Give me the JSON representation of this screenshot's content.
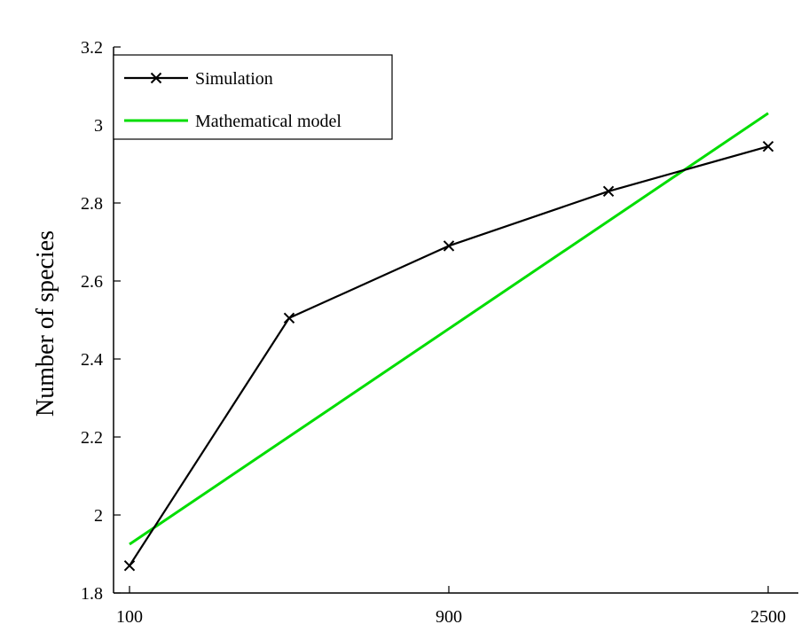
{
  "chart_data": {
    "type": "line",
    "xlabel": "",
    "ylabel": "Number of species",
    "x_tick_labels": [
      "100",
      "900",
      "2500"
    ],
    "x_tick_values": [
      100,
      900,
      2500
    ],
    "ylim": [
      1.8,
      3.2
    ],
    "y_ticks": [
      1.8,
      2,
      2.2,
      2.4,
      2.6,
      2.8,
      3,
      3.2
    ],
    "y_tick_labels": [
      "1.8",
      "2",
      "2.2",
      "2.4",
      "2.6",
      "2.8",
      "3",
      "3.2"
    ],
    "grid": false,
    "legend_position": "top-left",
    "series": [
      {
        "name": "Simulation",
        "color": "#000000",
        "marker": "x",
        "x": [
          100,
          400,
          900,
          1600,
          2500
        ],
        "y": [
          1.87,
          2.505,
          2.69,
          2.83,
          2.945
        ]
      },
      {
        "name": "Mathematical model",
        "color": "#00dd00",
        "marker": "none",
        "x": [
          100,
          2500
        ],
        "y": [
          1.925,
          3.03
        ]
      }
    ]
  }
}
